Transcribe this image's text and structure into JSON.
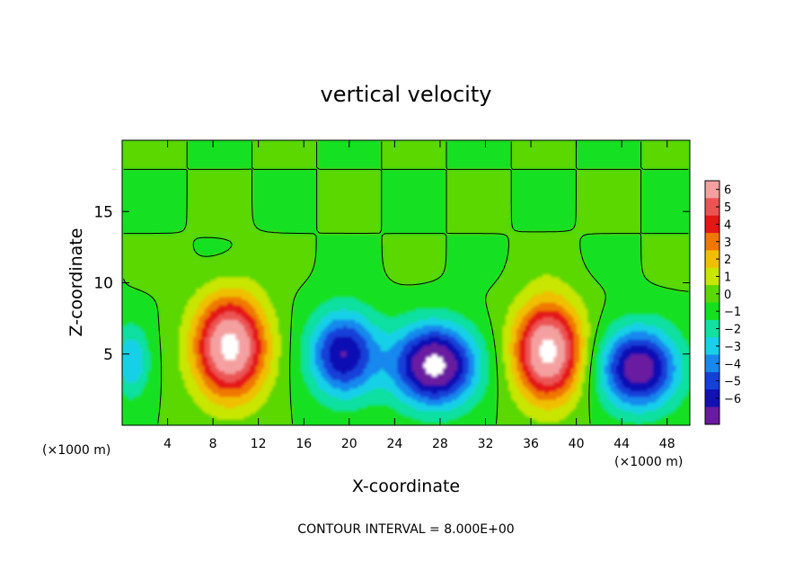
{
  "chart_data": {
    "type": "heatmap",
    "title": "vertical velocity",
    "xlabel": "X-coordinate",
    "ylabel": "Z-coordinate",
    "x_unit_left": "(×1000 m)",
    "x_unit_right": "(×1000 m)",
    "footer": "CONTOUR INTERVAL = 8.000E+00",
    "xlim": [
      0,
      50
    ],
    "ylim": [
      0,
      20
    ],
    "x_ticks": [
      4,
      8,
      12,
      16,
      20,
      24,
      28,
      32,
      36,
      40,
      44,
      48
    ],
    "x_tick_labels": [
      "4",
      "8",
      "12",
      "16",
      "20",
      "24",
      "28",
      "32",
      "36",
      "40",
      "44",
      "48"
    ],
    "y_ticks": [
      5,
      10,
      15
    ],
    "y_tick_labels": [
      "5",
      "10",
      "15"
    ],
    "colorbar": {
      "levels": [
        6,
        5,
        4,
        3,
        2,
        1,
        0,
        -1,
        -2,
        -3,
        -4,
        -5,
        -6
      ],
      "labels": [
        "6",
        "5",
        "4",
        "3",
        "2",
        "1",
        "0",
        "−1",
        "−2",
        "−3",
        "−4",
        "−5",
        "−6"
      ],
      "colors": [
        "#f4a0a0",
        "#ec5454",
        "#e41616",
        "#f07800",
        "#f0c000",
        "#c8e600",
        "#5ad800",
        "#14e020",
        "#10e0a0",
        "#18d0e8",
        "#1888ee",
        "#1440d8",
        "#1010b4",
        "#6a1aa0"
      ],
      "saturated_color": "#ffffff"
    },
    "contour_interval": 8.0,
    "features": [
      {
        "name": "updraft",
        "x_center": 9.5,
        "z_center": 5.5,
        "peak": 8,
        "x_halfwidth": 3.2,
        "z_halfwidth": 3.6
      },
      {
        "name": "updraft",
        "x_center": 37.5,
        "z_center": 5.2,
        "peak": 8,
        "x_halfwidth": 3.0,
        "z_halfwidth": 3.5
      },
      {
        "name": "downdraft",
        "x_center": 19.5,
        "z_center": 5.0,
        "peak": -6,
        "x_halfwidth": 3.0,
        "z_halfwidth": 3.0
      },
      {
        "name": "downdraft",
        "x_center": 27.5,
        "z_center": 4.2,
        "peak": -8,
        "x_halfwidth": 3.6,
        "z_halfwidth": 2.8
      },
      {
        "name": "downdraft",
        "x_center": 45.5,
        "z_center": 4.0,
        "peak": -7,
        "x_halfwidth": 3.4,
        "z_halfwidth": 2.8
      },
      {
        "name": "downdraft",
        "x_center": 0.8,
        "z_center": 4.5,
        "peak": -3,
        "x_halfwidth": 1.6,
        "z_halfwidth": 2.5
      }
    ]
  }
}
